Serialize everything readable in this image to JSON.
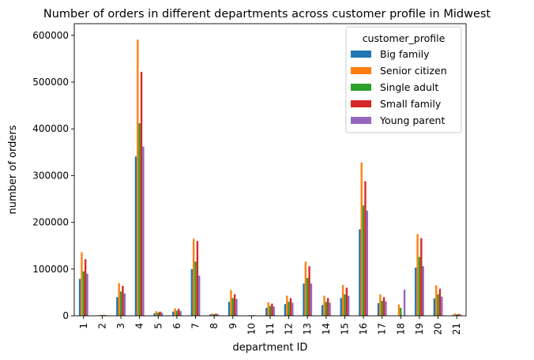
{
  "chart_data": {
    "type": "bar",
    "title": "Number of orders in different departments across customer profile in Midwest",
    "xlabel": "department ID",
    "ylabel": "number of orders",
    "ylim": [
      0,
      625000
    ],
    "yticks": [
      0,
      100000,
      200000,
      300000,
      400000,
      500000,
      600000
    ],
    "grid": false,
    "legend_position": "top-right",
    "legend_title": "customer_profile",
    "categories": [
      "1",
      "2",
      "3",
      "4",
      "5",
      "6",
      "7",
      "8",
      "9",
      "10",
      "11",
      "12",
      "13",
      "14",
      "15",
      "16",
      "17",
      "18",
      "19",
      "20",
      "21"
    ],
    "series": [
      {
        "name": "Big family",
        "color": "#1f77b4",
        "values": [
          79000,
          1000,
          40000,
          341000,
          5500,
          9000,
          100000,
          3000,
          30000,
          1000,
          17000,
          25000,
          69000,
          23000,
          38000,
          185000,
          27000,
          500,
          103000,
          37000,
          2000
        ]
      },
      {
        "name": "Senior citizen",
        "color": "#ff7f0e",
        "values": [
          136000,
          2000,
          70000,
          591000,
          10000,
          16000,
          165000,
          5000,
          55000,
          1500,
          29000,
          43000,
          116000,
          43000,
          66000,
          328000,
          46000,
          24000,
          175000,
          65000,
          5000
        ]
      },
      {
        "name": "Single adult",
        "color": "#2ca02c",
        "values": [
          95000,
          1500,
          52000,
          412000,
          7000,
          11000,
          116000,
          3500,
          38000,
          1000,
          21000,
          30000,
          81000,
          30000,
          46000,
          236000,
          32000,
          17000,
          126000,
          46000,
          3000
        ]
      },
      {
        "name": "Small family",
        "color": "#d62728",
        "values": [
          121000,
          2000,
          64000,
          522000,
          9000,
          15000,
          160000,
          4500,
          46000,
          1500,
          26000,
          38000,
          106000,
          38000,
          60000,
          288000,
          40000,
          500,
          166000,
          58000,
          4000
        ]
      },
      {
        "name": "Young parent",
        "color": "#9467bd",
        "values": [
          90000,
          1500,
          48000,
          362000,
          6500,
          10000,
          86000,
          3500,
          36000,
          1000,
          20000,
          28000,
          69000,
          28000,
          43000,
          225000,
          31000,
          56000,
          106000,
          41000,
          3000
        ]
      }
    ]
  }
}
